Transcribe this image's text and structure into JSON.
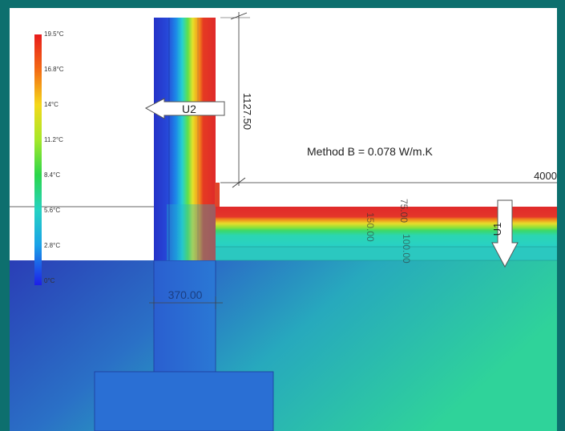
{
  "legend": {
    "labels": [
      "19.5°C",
      "16.8°C",
      "14°C",
      "11.2°C",
      "8.4°C",
      "5.6°C",
      "2.8°C",
      "0°C"
    ],
    "colors": [
      "#e81c1c",
      "#f36a14",
      "#f5d81a",
      "#a6e82a",
      "#2bd64a",
      "#26d2c2",
      "#1aa2e8",
      "#1d1ee8"
    ]
  },
  "annotation": {
    "method": "Method B = 0.078 W/m.K"
  },
  "arrows": {
    "u2": "U2",
    "u1": "U1"
  },
  "dimensions": {
    "wall_height": "1127.50",
    "floor_length": "4000",
    "wall_thickness": "370.00",
    "slab_top": "75.00",
    "insulation": "150.00",
    "slab_bottom": "100.00"
  },
  "colors": {
    "background": "#0d6f6e",
    "ground_dark": "#2a45b8",
    "ground_light": "#2bc9a6",
    "warm": "#e02a2a",
    "cold": "#2233cc"
  }
}
